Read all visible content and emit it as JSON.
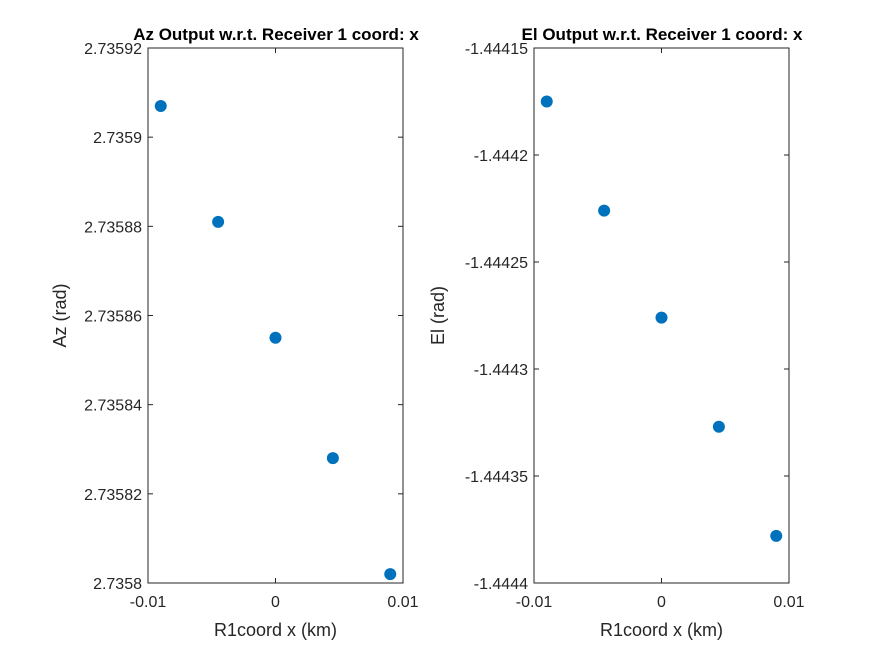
{
  "chart_data": [
    {
      "type": "scatter",
      "title": "Az Output w.r.t. Receiver 1 coord: x",
      "xlabel": "R1coord x (km)",
      "ylabel": "Az (rad)",
      "xlim": [
        -0.01,
        0.01
      ],
      "ylim": [
        2.7358,
        2.73592
      ],
      "xticks": [
        -0.01,
        0,
        0.01
      ],
      "xtick_labels": [
        "-0.01",
        "0",
        "0.01"
      ],
      "yticks": [
        2.7358,
        2.73582,
        2.73584,
        2.73586,
        2.73588,
        2.7359,
        2.73592
      ],
      "ytick_labels": [
        "2.7358",
        "2.73582",
        "2.73584",
        "2.73586",
        "2.73588",
        "2.7359",
        "2.73592"
      ],
      "grid": false,
      "marker_color": "#0072BD",
      "points": {
        "x": [
          -0.009,
          -0.0045,
          0,
          0.0045,
          0.009
        ],
        "y": [
          2.735907,
          2.735881,
          2.735855,
          2.735828,
          2.735802
        ]
      }
    },
    {
      "type": "scatter",
      "title": "El Output w.r.t. Receiver 1 coord: x",
      "xlabel": "R1coord x (km)",
      "ylabel": "El (rad)",
      "xlim": [
        -0.01,
        0.01
      ],
      "ylim": [
        -1.4444,
        -1.44415
      ],
      "xticks": [
        -0.01,
        0,
        0.01
      ],
      "xtick_labels": [
        "-0.01",
        "0",
        "0.01"
      ],
      "yticks": [
        -1.4444,
        -1.44435,
        -1.4443,
        -1.44425,
        -1.4442,
        -1.44415
      ],
      "ytick_labels": [
        "-1.4444",
        "-1.44435",
        "-1.4443",
        "-1.44425",
        "-1.4442",
        "-1.44415"
      ],
      "grid": false,
      "marker_color": "#0072BD",
      "points": {
        "x": [
          -0.009,
          -0.0045,
          0,
          0.0045,
          0.009
        ],
        "y": [
          -1.444175,
          -1.444226,
          -1.444276,
          -1.444327,
          -1.444378
        ]
      }
    }
  ]
}
